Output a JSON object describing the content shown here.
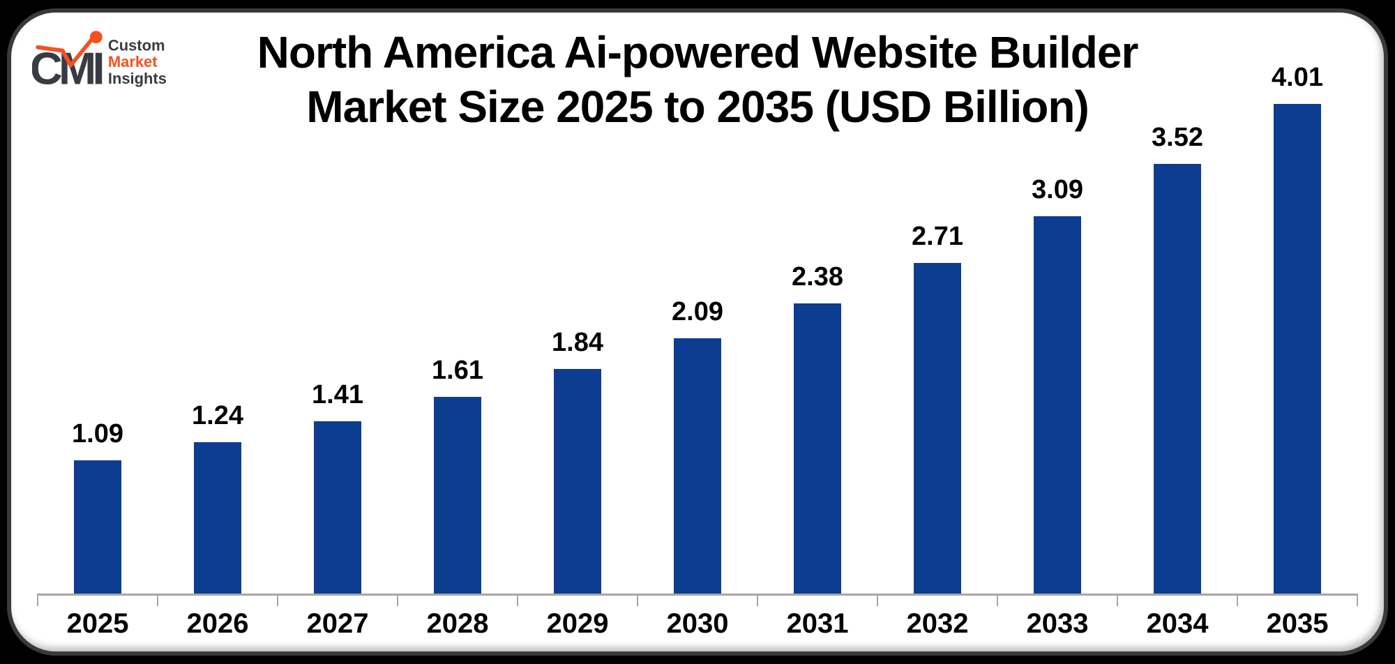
{
  "logo": {
    "monogram": "CMI",
    "line1": "Custom",
    "line2": "Market",
    "line3": "Insights",
    "dark_color": "#383C42",
    "accent_color": "#F3521F"
  },
  "title": {
    "line1": "North America Ai-powered Website Builder",
    "line2": "Market Size 2025 to 2035 (USD Billion)"
  },
  "chart_data": {
    "type": "bar",
    "title": "North America Ai-powered Website Builder Market Size 2025 to 2035 (USD Billion)",
    "categories": [
      "2025",
      "2026",
      "2027",
      "2028",
      "2029",
      "2030",
      "2031",
      "2032",
      "2033",
      "2034",
      "2035"
    ],
    "values": [
      1.09,
      1.24,
      1.41,
      1.61,
      1.84,
      2.09,
      2.38,
      2.71,
      3.09,
      3.52,
      4.01
    ],
    "value_labels": [
      "1.09",
      "1.24",
      "1.41",
      "1.61",
      "1.84",
      "2.09",
      "2.38",
      "2.71",
      "3.09",
      "3.52",
      "4.01"
    ],
    "xlabel": "",
    "ylabel": "",
    "unit": "USD Billion",
    "ylim": [
      0,
      4.4
    ],
    "grid": false,
    "legend": "none",
    "bar_color": "#0C3D90",
    "axis_color": "#A6A6A6"
  }
}
